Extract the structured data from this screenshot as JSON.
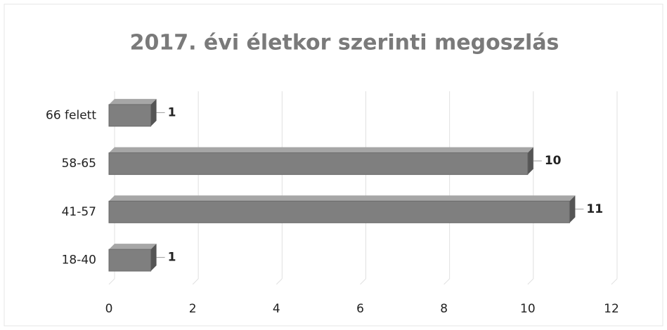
{
  "chart_data": {
    "type": "bar",
    "orientation": "horizontal",
    "title": "2017. évi életkor szerinti megoszlás",
    "categories": [
      "18-40",
      "41-57",
      "58-65",
      "66 felett"
    ],
    "values": [
      1,
      11,
      10,
      1
    ],
    "color": "#7f7f7f",
    "xlim": [
      0,
      12
    ],
    "xticks": [
      0,
      2,
      4,
      6,
      8,
      10,
      12
    ],
    "grid": true
  }
}
